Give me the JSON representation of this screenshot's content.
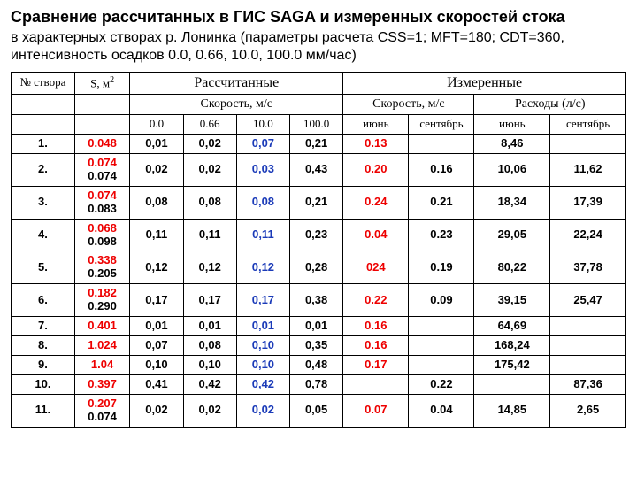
{
  "title_bold": "Сравнение рассчитанных в ГИС SAGA и измеренных скоростей стока",
  "subtitle_line1": "в характерных створах р. Лонинка (параметры расчета CSS=1; MFT=180; CDT=360,",
  "subtitle_line2": "интенсивность осадков 0.0, 0.66, 10.0, 100.0 мм/час)",
  "headers": {
    "col_n": "№ створа",
    "col_s_prefix": "S, м",
    "col_s_sup": "2",
    "group_calc": "Рассчитанные",
    "group_meas": "Измеренные",
    "calc_speed": "Скорость, м/с",
    "meas_speed": "Скорость, м/с",
    "meas_flow": "Расходы (л/с)",
    "c0": "0.0",
    "c1": "0.66",
    "c2": "10.0",
    "c3": "100.0",
    "jun": "июнь",
    "sep": "сентябрь"
  },
  "rows": [
    {
      "n": "1.",
      "s": [
        "0.048"
      ],
      "calc": [
        "0,01",
        "0,02",
        "0,07",
        "0,21"
      ],
      "m_jun": "0.13",
      "m_sep": "",
      "q_jun": "8,46",
      "q_sep": ""
    },
    {
      "n": "2.",
      "s": [
        "0.074",
        "0.074"
      ],
      "calc": [
        "0,02",
        "0,02",
        "0,03",
        "0,43"
      ],
      "m_jun": "0.20",
      "m_sep": "0.16",
      "q_jun": "10,06",
      "q_sep": "11,62"
    },
    {
      "n": "3.",
      "s": [
        "0.074",
        "0.083"
      ],
      "calc": [
        "0,08",
        "0,08",
        "0,08",
        "0,21"
      ],
      "m_jun": "0.24",
      "m_sep": "0.21",
      "q_jun": "18,34",
      "q_sep": "17,39"
    },
    {
      "n": "4.",
      "s": [
        "0.068",
        "0.098"
      ],
      "calc": [
        "0,11",
        "0,11",
        "0,11",
        "0,23"
      ],
      "m_jun": "0.04",
      "m_sep": "0.23",
      "q_jun": "29,05",
      "q_sep": "22,24"
    },
    {
      "n": "5.",
      "s": [
        "0.338",
        "0.205"
      ],
      "calc": [
        "0,12",
        "0,12",
        "0,12",
        "0,28"
      ],
      "m_jun": "024",
      "m_sep": "0.19",
      "q_jun": "80,22",
      "q_sep": "37,78"
    },
    {
      "n": "6.",
      "s": [
        "0.182",
        "0.290"
      ],
      "calc": [
        "0,17",
        "0,17",
        "0,17",
        "0,38"
      ],
      "m_jun": "0.22",
      "m_sep": "0.09",
      "q_jun": "39,15",
      "q_sep": "25,47"
    },
    {
      "n": "7.",
      "s": [
        "0.401"
      ],
      "calc": [
        "0,01",
        "0,01",
        "0,01",
        "0,01"
      ],
      "m_jun": "0.16",
      "m_sep": "",
      "q_jun": "64,69",
      "q_sep": ""
    },
    {
      "n": "8.",
      "s": [
        "1.024"
      ],
      "calc": [
        "0,07",
        "0,08",
        "0,10",
        "0,35"
      ],
      "m_jun": "0.16",
      "m_sep": "",
      "q_jun": "168,24",
      "q_sep": ""
    },
    {
      "n": "9.",
      "s": [
        "1.04"
      ],
      "calc": [
        "0,10",
        "0,10",
        "0,10",
        "0,48"
      ],
      "m_jun": "0.17",
      "m_sep": "",
      "q_jun": "175,42",
      "q_sep": ""
    },
    {
      "n": "10.",
      "s": [
        "0.397"
      ],
      "calc": [
        "0,41",
        "0,42",
        "0,42",
        "0,78"
      ],
      "m_jun": "",
      "m_sep": "0.22",
      "q_jun": "",
      "q_sep": "87,36"
    },
    {
      "n": "11.",
      "s": [
        "0.207",
        "0.074"
      ],
      "calc": [
        "0,02",
        "0,02",
        "0,02",
        "0,05"
      ],
      "m_jun": "0.07",
      "m_sep": "0.04",
      "q_jun": "14,85",
      "q_sep": "2,65"
    }
  ],
  "colors": {
    "red": "#ee0000",
    "blue": "#1a3ab8",
    "border": "#000000",
    "text": "#000000",
    "bg": "#ffffff"
  }
}
